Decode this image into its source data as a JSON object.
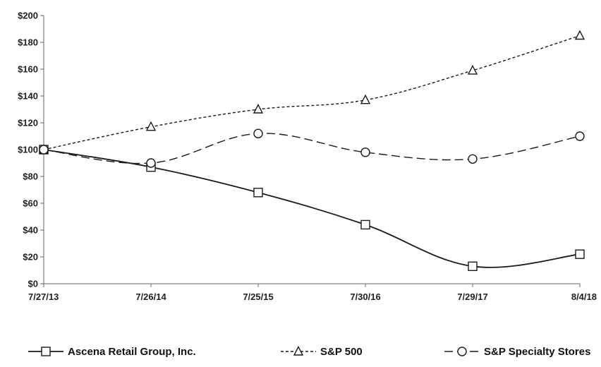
{
  "chart_data": {
    "type": "line",
    "title": "",
    "xlabel": "",
    "ylabel": "",
    "categories": [
      "7/27/13",
      "7/26/14",
      "7/25/15",
      "7/30/16",
      "7/29/17",
      "8/4/18"
    ],
    "ylim": [
      0,
      200
    ],
    "y_ticks": [
      "$0",
      "$20",
      "$40",
      "$60",
      "$80",
      "$100",
      "$120",
      "$140",
      "$160",
      "$180",
      "$200"
    ],
    "grid": false,
    "legend_position": "bottom",
    "series": [
      {
        "name": "Ascena Retail Group, Inc.",
        "values": [
          100,
          87,
          68,
          44,
          13,
          22
        ],
        "marker": "square",
        "line": "solid",
        "color": "#1a1a1a"
      },
      {
        "name": "S&P 500",
        "values": [
          100,
          117,
          130,
          137,
          159,
          185
        ],
        "marker": "triangle",
        "line": "dotted",
        "color": "#1a1a1a"
      },
      {
        "name": "S&P Specialty Stores",
        "values": [
          100,
          90,
          112,
          98,
          93,
          110
        ],
        "marker": "circle",
        "line": "dashed",
        "color": "#1a1a1a"
      }
    ]
  }
}
